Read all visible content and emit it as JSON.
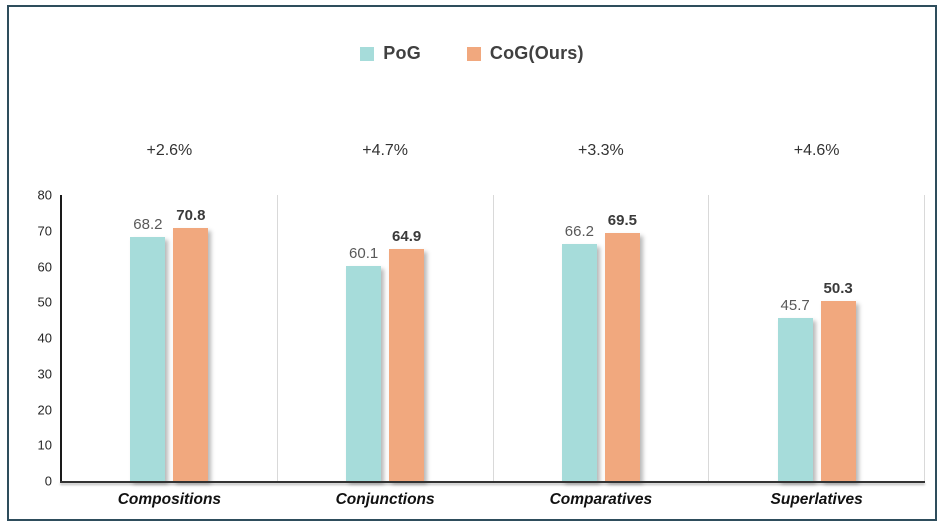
{
  "chart_data": {
    "type": "bar",
    "title": "",
    "categories": [
      "Compositions",
      "Conjunctions",
      "Comparatives",
      "Superlatives"
    ],
    "series": [
      {
        "name": "PoG",
        "color": "#a6dcda",
        "values": [
          68.2,
          60.1,
          66.2,
          45.7
        ]
      },
      {
        "name": "CoG(Ours)",
        "color": "#f1a87e",
        "values": [
          70.8,
          64.9,
          69.5,
          50.3
        ]
      }
    ],
    "gain_labels": [
      "+2.6%",
      "+4.7%",
      "+3.3%",
      "+4.6%"
    ],
    "ylim": [
      0,
      80
    ],
    "yticks": [
      0,
      10,
      20,
      30,
      40,
      50,
      60,
      70,
      80
    ],
    "xlabel": "",
    "ylabel": "",
    "legend_position": "top-center",
    "grid": false,
    "group_separators": true
  },
  "colors": {
    "frame_border": "#2e4d5c",
    "separator": "#d9d9d9",
    "axis": "#1a1a1a",
    "tick_text": "#262626",
    "value_text": "#595959",
    "value_text_emph": "#3a3a3a",
    "legend_text": "#404040",
    "background": "#ffffff"
  }
}
